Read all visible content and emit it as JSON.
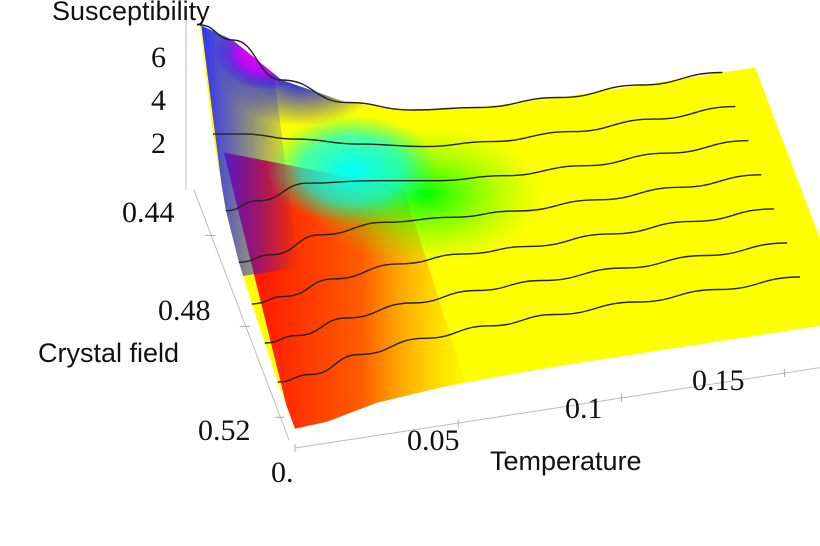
{
  "chart_data": {
    "type": "surface",
    "zlabel": "Susceptibility",
    "xlabel": "Temperature",
    "ylabel": "Crystal field",
    "z_ticks": [
      "2",
      "4",
      "6"
    ],
    "x_ticks": [
      "0.",
      "0.05",
      "0.1",
      "0.15"
    ],
    "y_ticks": [
      "0.44",
      "0.48",
      "0.52"
    ],
    "x_range": [
      0,
      0.17
    ],
    "y_range": [
      0.42,
      0.53
    ],
    "z_range": [
      0,
      7
    ],
    "contour_lines": [
      {
        "crystal_field": 0.42,
        "susceptibility": [
          6.6,
          5.8,
          3.9,
          2.6,
          1.9,
          1.6,
          1.5,
          1.5,
          1.5
        ]
      },
      {
        "crystal_field": 0.435,
        "susceptibility": [
          3.6,
          3.4,
          2.9,
          2.3,
          1.8,
          1.6,
          1.5,
          1.5,
          1.5
        ]
      },
      {
        "crystal_field": 0.45,
        "susceptibility": [
          1.9,
          2.1,
          2.5,
          2.2,
          1.8,
          1.6,
          1.5,
          1.5,
          1.5
        ]
      },
      {
        "crystal_field": 0.465,
        "susceptibility": [
          1.2,
          1.3,
          1.8,
          1.9,
          1.7,
          1.55,
          1.5,
          1.5,
          1.5
        ]
      },
      {
        "crystal_field": 0.48,
        "susceptibility": [
          0.9,
          1.0,
          1.4,
          1.6,
          1.6,
          1.5,
          1.5,
          1.5,
          1.5
        ]
      },
      {
        "crystal_field": 0.495,
        "susceptibility": [
          0.7,
          0.8,
          1.2,
          1.4,
          1.5,
          1.5,
          1.5,
          1.5,
          1.5
        ]
      },
      {
        "crystal_field": 0.51,
        "susceptibility": [
          0.5,
          0.6,
          1.1,
          1.35,
          1.45,
          1.5,
          1.5,
          1.5,
          1.5
        ]
      }
    ],
    "contour_temperatures": [
      0.0,
      0.01,
      0.025,
      0.045,
      0.065,
      0.085,
      0.11,
      0.135,
      0.16
    ],
    "colormap": [
      "#ff0000",
      "#ffff00",
      "#00ff00",
      "#00ffff",
      "#0000ff",
      "#ff00ff"
    ]
  }
}
